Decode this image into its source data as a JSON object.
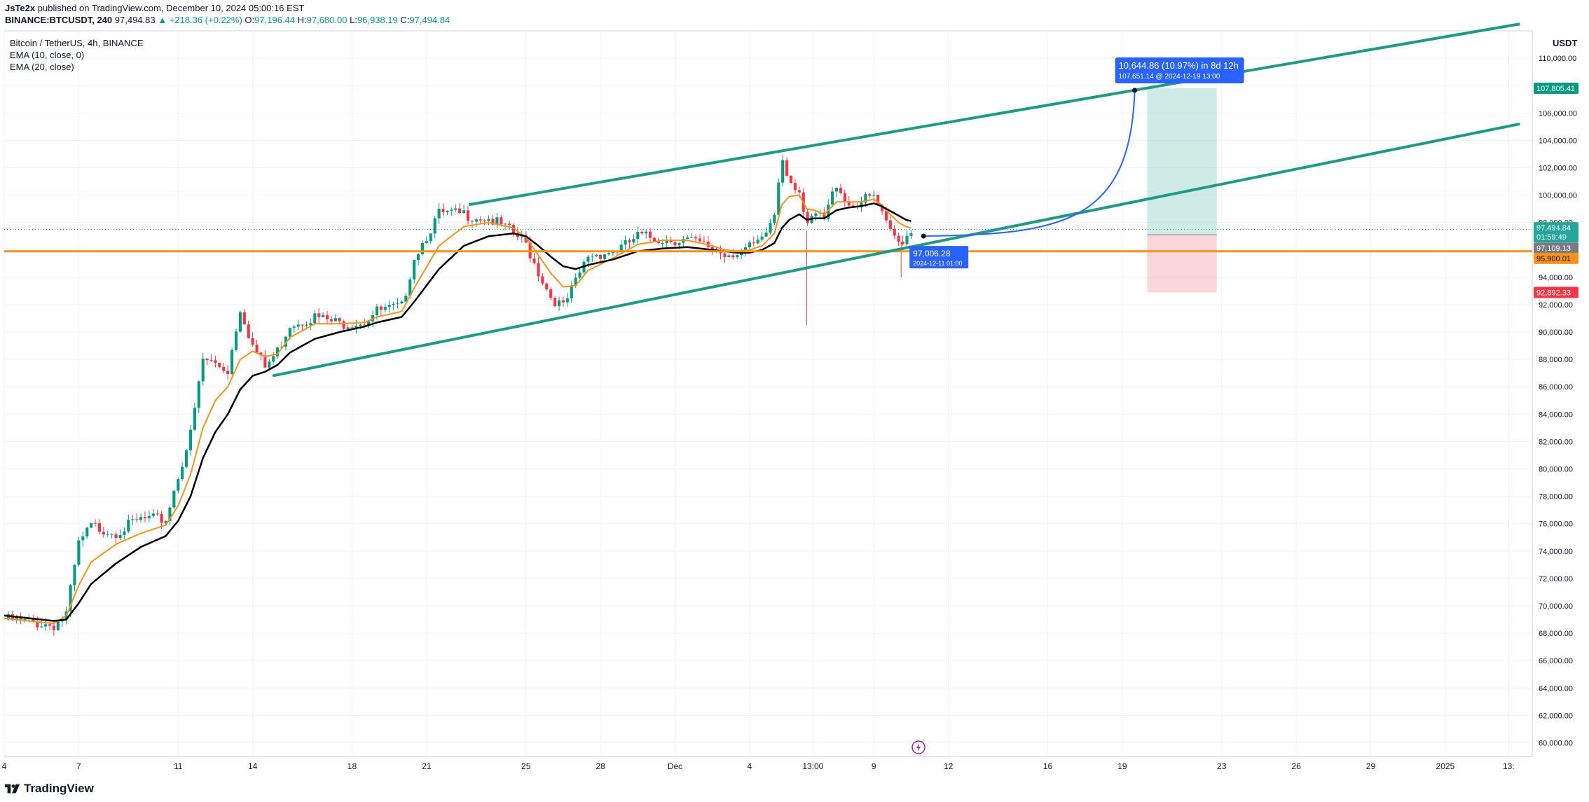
{
  "header": {
    "publisher": "JsTe2x",
    "published_text": "published on TradingView.com, December 10, 2024 05:00:16 EST",
    "symbol": "BINANCE:BTCUSDT, 240",
    "last": "97,494.83",
    "change": "▲ +218.36 (+0.22%)",
    "o_label": "O:",
    "o": "97,196.44",
    "h_label": "H:",
    "h": "97,680.00",
    "l_label": "L:",
    "l": "96,938.19",
    "c_label": "C:",
    "c": "97,494.84"
  },
  "legend": {
    "title": "Bitcoin / TetherUS, 4h, BINANCE",
    "ema10": "EMA (10, close, 0)",
    "ema20": "EMA (20, close)"
  },
  "footer": {
    "brand": "TradingView"
  },
  "chart_data": {
    "type": "candlestick",
    "currency": "USDT",
    "ylim": [
      59000,
      112000
    ],
    "y_ticks": [
      "110,000.00",
      "108,000.00",
      "106,000.00",
      "104,000.00",
      "102,000.00",
      "100,000.00",
      "98,000.00",
      "96,000.00",
      "94,000.00",
      "92,000.00",
      "90,000.00",
      "88,000.00",
      "86,000.00",
      "84,000.00",
      "82,000.00",
      "80,000.00",
      "78,000.00",
      "76,000.00",
      "74,000.00",
      "72,000.00",
      "70,000.00",
      "68,000.00",
      "66,000.00",
      "64,000.00",
      "62,000.00",
      "60,000.00"
    ],
    "y_tick_values": [
      110000,
      108000,
      106000,
      104000,
      102000,
      100000,
      98000,
      96000,
      94000,
      92000,
      90000,
      88000,
      86000,
      84000,
      82000,
      80000,
      78000,
      76000,
      74000,
      72000,
      70000,
      68000,
      66000,
      64000,
      62000,
      60000
    ],
    "x_ticks": [
      {
        "label": "4",
        "day": 4
      },
      {
        "label": "7",
        "day": 7
      },
      {
        "label": "11",
        "day": 11
      },
      {
        "label": "14",
        "day": 14
      },
      {
        "label": "18",
        "day": 18
      },
      {
        "label": "21",
        "day": 21
      },
      {
        "label": "25",
        "day": 25
      },
      {
        "label": "28",
        "day": 28
      },
      {
        "label": "Dec",
        "day": 31
      },
      {
        "label": "4",
        "day": 34
      },
      {
        "label": "13:00",
        "day": 36.55
      },
      {
        "label": "9",
        "day": 39
      },
      {
        "label": "12",
        "day": 42
      },
      {
        "label": "16",
        "day": 46
      },
      {
        "label": "19",
        "day": 49
      },
      {
        "label": "23",
        "day": 53
      },
      {
        "label": "26",
        "day": 56
      },
      {
        "label": "29",
        "day": 59
      },
      {
        "label": "2025",
        "day": 62
      },
      {
        "label": "13:",
        "day": 64.55
      }
    ],
    "price_path": [
      [
        4.0,
        69000
      ],
      [
        5.0,
        68800
      ],
      [
        6.0,
        68600
      ],
      [
        6.5,
        69400
      ],
      [
        7.0,
        74500
      ],
      [
        7.5,
        75800
      ],
      [
        8.5,
        75400
      ],
      [
        9.5,
        76300
      ],
      [
        10.5,
        76300
      ],
      [
        11.0,
        79500
      ],
      [
        11.5,
        82500
      ],
      [
        12.0,
        88000
      ],
      [
        12.5,
        87700
      ],
      [
        13.0,
        87200
      ],
      [
        13.5,
        91800
      ],
      [
        14.0,
        89000
      ],
      [
        14.5,
        87400
      ],
      [
        15.0,
        88600
      ],
      [
        15.5,
        90600
      ],
      [
        16.5,
        91100
      ],
      [
        17.5,
        90600
      ],
      [
        18.5,
        90800
      ],
      [
        19.0,
        91500
      ],
      [
        20.0,
        91800
      ],
      [
        20.5,
        95500
      ],
      [
        21.5,
        98600
      ],
      [
        22.5,
        98600
      ],
      [
        23.5,
        98300
      ],
      [
        24.5,
        97200
      ],
      [
        25.0,
        96400
      ],
      [
        25.5,
        94400
      ],
      [
        26.0,
        92600
      ],
      [
        26.5,
        91800
      ],
      [
        27.0,
        93600
      ],
      [
        27.5,
        95600
      ],
      [
        28.5,
        95900
      ],
      [
        29.0,
        96300
      ],
      [
        29.5,
        97000
      ],
      [
        30.5,
        96800
      ],
      [
        31.5,
        96700
      ],
      [
        32.0,
        96400
      ],
      [
        32.5,
        96100
      ],
      [
        33.0,
        95700
      ],
      [
        33.5,
        95900
      ],
      [
        34.0,
        96100
      ],
      [
        34.5,
        96600
      ],
      [
        35.0,
        98600
      ],
      [
        35.3,
        103000
      ],
      [
        35.6,
        101200
      ],
      [
        36.0,
        100400
      ],
      [
        36.3,
        97400
      ],
      [
        36.6,
        98600
      ],
      [
        37.0,
        98200
      ],
      [
        37.5,
        100900
      ],
      [
        38.0,
        99300
      ],
      [
        38.5,
        99500
      ],
      [
        39.0,
        99900
      ],
      [
        39.3,
        98600
      ],
      [
        39.6,
        97400
      ],
      [
        40.0,
        96600
      ],
      [
        40.3,
        97000
      ],
      [
        40.5,
        97500
      ]
    ],
    "ema10": [
      [
        4.0,
        69100
      ],
      [
        5.0,
        68900
      ],
      [
        6.0,
        68700
      ],
      [
        6.5,
        69300
      ],
      [
        7.0,
        71500
      ],
      [
        7.5,
        73200
      ],
      [
        8.5,
        74500
      ],
      [
        9.5,
        75300
      ],
      [
        10.5,
        75900
      ],
      [
        11.0,
        77300
      ],
      [
        11.5,
        79600
      ],
      [
        12.0,
        83000
      ],
      [
        12.5,
        85000
      ],
      [
        13.0,
        86000
      ],
      [
        13.5,
        88000
      ],
      [
        14.0,
        88600
      ],
      [
        14.5,
        88200
      ],
      [
        15.0,
        88400
      ],
      [
        15.5,
        89600
      ],
      [
        16.5,
        90600
      ],
      [
        17.5,
        90600
      ],
      [
        18.5,
        90700
      ],
      [
        19.0,
        91100
      ],
      [
        20.0,
        91500
      ],
      [
        20.5,
        93200
      ],
      [
        21.5,
        96300
      ],
      [
        22.5,
        97700
      ],
      [
        23.5,
        98000
      ],
      [
        24.5,
        97600
      ],
      [
        25.0,
        96900
      ],
      [
        25.5,
        95600
      ],
      [
        26.0,
        94300
      ],
      [
        26.5,
        93300
      ],
      [
        27.0,
        93400
      ],
      [
        27.5,
        94500
      ],
      [
        28.5,
        95400
      ],
      [
        29.0,
        95900
      ],
      [
        29.5,
        96400
      ],
      [
        30.5,
        96700
      ],
      [
        31.5,
        96700
      ],
      [
        32.0,
        96500
      ],
      [
        32.5,
        96300
      ],
      [
        33.0,
        96000
      ],
      [
        33.5,
        95900
      ],
      [
        34.0,
        96000
      ],
      [
        34.5,
        96300
      ],
      [
        35.0,
        97200
      ],
      [
        35.3,
        99300
      ],
      [
        35.6,
        99900
      ],
      [
        36.0,
        100000
      ],
      [
        36.3,
        99000
      ],
      [
        36.6,
        98900
      ],
      [
        37.0,
        98600
      ],
      [
        37.5,
        99500
      ],
      [
        38.0,
        99500
      ],
      [
        38.5,
        99500
      ],
      [
        39.0,
        99700
      ],
      [
        39.3,
        99300
      ],
      [
        39.6,
        98700
      ],
      [
        40.0,
        98000
      ],
      [
        40.3,
        97700
      ],
      [
        40.5,
        97600
      ]
    ],
    "ema20": [
      [
        4.0,
        69300
      ],
      [
        5.0,
        69100
      ],
      [
        6.0,
        68900
      ],
      [
        6.5,
        69000
      ],
      [
        7.0,
        70200
      ],
      [
        7.5,
        71600
      ],
      [
        8.5,
        73100
      ],
      [
        9.5,
        74300
      ],
      [
        10.5,
        75100
      ],
      [
        11.0,
        76200
      ],
      [
        11.5,
        78000
      ],
      [
        12.0,
        80800
      ],
      [
        12.5,
        82700
      ],
      [
        13.0,
        84000
      ],
      [
        13.5,
        85800
      ],
      [
        14.0,
        86800
      ],
      [
        14.5,
        87100
      ],
      [
        15.0,
        87600
      ],
      [
        15.5,
        88500
      ],
      [
        16.5,
        89500
      ],
      [
        17.5,
        90000
      ],
      [
        18.5,
        90400
      ],
      [
        19.0,
        90700
      ],
      [
        20.0,
        91100
      ],
      [
        20.5,
        92200
      ],
      [
        21.5,
        94600
      ],
      [
        22.5,
        96300
      ],
      [
        23.5,
        97000
      ],
      [
        24.5,
        97200
      ],
      [
        25.0,
        97000
      ],
      [
        25.5,
        96300
      ],
      [
        26.0,
        95500
      ],
      [
        26.5,
        94800
      ],
      [
        27.0,
        94600
      ],
      [
        27.5,
        94900
      ],
      [
        28.5,
        95300
      ],
      [
        29.0,
        95600
      ],
      [
        29.5,
        95900
      ],
      [
        30.5,
        96100
      ],
      [
        31.5,
        96200
      ],
      [
        32.0,
        96100
      ],
      [
        32.5,
        96000
      ],
      [
        33.0,
        95900
      ],
      [
        33.5,
        95800
      ],
      [
        34.0,
        95800
      ],
      [
        34.5,
        96000
      ],
      [
        35.0,
        96500
      ],
      [
        35.3,
        97600
      ],
      [
        35.6,
        98200
      ],
      [
        36.0,
        98600
      ],
      [
        36.3,
        98200
      ],
      [
        36.6,
        98300
      ],
      [
        37.0,
        98300
      ],
      [
        37.5,
        98900
      ],
      [
        38.0,
        99100
      ],
      [
        38.5,
        99200
      ],
      [
        39.0,
        99400
      ],
      [
        39.3,
        99200
      ],
      [
        39.6,
        98900
      ],
      [
        40.0,
        98500
      ],
      [
        40.3,
        98200
      ],
      [
        40.5,
        98100
      ]
    ],
    "channel_upper": {
      "from": [
        22.7,
        99300
      ],
      "to": [
        65.0,
        112500
      ]
    },
    "channel_lower": {
      "from": [
        14.8,
        86800
      ],
      "to": [
        65.0,
        105200
      ]
    },
    "support_level": {
      "price": 95900,
      "color": "#f7931a"
    },
    "last_price_line": 97494.84,
    "projection": {
      "start": [
        41.0,
        97006.28
      ],
      "end": [
        49.5,
        107651.14
      ],
      "start_label": "97,006.28",
      "start_sublabel": "2024-12-11 01:00",
      "end_label": "10,644.86 (10.97%) in 8d 12h",
      "end_sublabel": "107,651.14 @ 2024-12-19  13:00"
    },
    "position": {
      "x_from": 50.0,
      "x_to": 52.8,
      "target": 107805.41,
      "entry": 97109.13,
      "stop": 92892.33
    },
    "price_labels": [
      {
        "text": "107,805.41",
        "price": 107805.41,
        "bg": "#089981",
        "fg": "#ffffff"
      },
      {
        "text": "97,494.84",
        "price": 97620,
        "bg": "#26a69a",
        "fg": "#ffffff"
      },
      {
        "text": "01:59:49",
        "price": 96950,
        "bg": "#26a69a",
        "fg": "#ffffff"
      },
      {
        "text": "97,109.13",
        "price": 96130,
        "bg": "#787b86",
        "fg": "#ffffff"
      },
      {
        "text": "95,900.01",
        "price": 95380,
        "bg": "#f7931a",
        "fg": "#131722"
      },
      {
        "text": "92,892.33",
        "price": 92892.33,
        "bg": "#f23645",
        "fg": "#ffffff"
      }
    ],
    "price_scale_unit": "USDT",
    "colors": {
      "up": "#089981",
      "down": "#f23645",
      "ema10": "#f7931a",
      "ema20": "#000000",
      "channel": "#1e9a86",
      "projection": "#2962ff"
    }
  }
}
